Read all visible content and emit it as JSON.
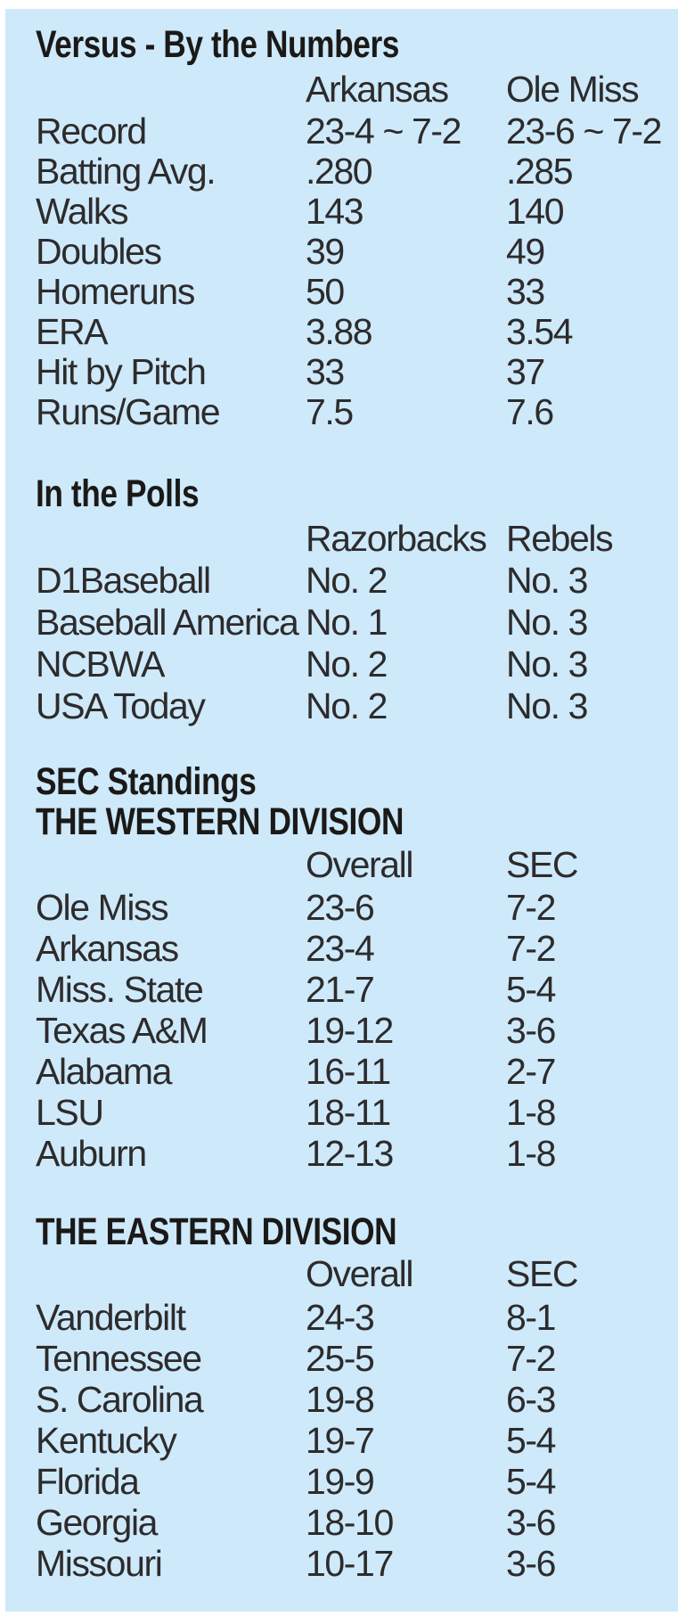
{
  "theme": {
    "panel_background": "#cee9fa",
    "page_background": "#ffffff",
    "body_text_color": "#2d2b2c",
    "heading_text_color": "#1b1917"
  },
  "versus": {
    "title": "Versus - By the Numbers",
    "columns": [
      "Arkansas",
      "Ole Miss"
    ],
    "rows": [
      {
        "label": "Record",
        "values": [
          "23-4 ~ 7-2",
          "23-6 ~ 7-2"
        ]
      },
      {
        "label": "Batting Avg.",
        "values": [
          ".280",
          ".285"
        ]
      },
      {
        "label": "Walks",
        "values": [
          "143",
          "140"
        ]
      },
      {
        "label": "Doubles",
        "values": [
          "39",
          "49"
        ]
      },
      {
        "label": "Homeruns",
        "values": [
          "50",
          "33"
        ]
      },
      {
        "label": "ERA",
        "values": [
          "3.88",
          "3.54"
        ]
      },
      {
        "label": "Hit by Pitch",
        "values": [
          "33",
          "37"
        ]
      },
      {
        "label": "Runs/Game",
        "values": [
          "7.5",
          "7.6"
        ]
      }
    ]
  },
  "polls": {
    "title": "In the Polls",
    "columns": [
      "Razorbacks",
      "Rebels"
    ],
    "rows": [
      {
        "label": "D1Baseball",
        "values": [
          "No. 2",
          "No. 3"
        ]
      },
      {
        "label": "Baseball America",
        "values": [
          "No. 1",
          "No. 3"
        ]
      },
      {
        "label": "NCBWA",
        "values": [
          "No. 2",
          "No. 3"
        ]
      },
      {
        "label": "USA Today",
        "values": [
          "No. 2",
          "No. 3"
        ]
      }
    ]
  },
  "standings": {
    "title": "SEC Standings",
    "west": {
      "title": "THE WESTERN DIVISION",
      "columns": [
        "Overall",
        "SEC"
      ],
      "rows": [
        {
          "label": "Ole Miss",
          "values": [
            "23-6",
            "7-2"
          ]
        },
        {
          "label": "Arkansas",
          "values": [
            "23-4",
            "7-2"
          ]
        },
        {
          "label": "Miss. State",
          "values": [
            "21-7",
            "5-4"
          ]
        },
        {
          "label": "Texas A&M",
          "values": [
            "19-12",
            "3-6"
          ]
        },
        {
          "label": "Alabama",
          "values": [
            "16-11",
            "2-7"
          ]
        },
        {
          "label": "LSU",
          "values": [
            "18-11",
            "1-8"
          ]
        },
        {
          "label": "Auburn",
          "values": [
            "12-13",
            "1-8"
          ]
        }
      ]
    },
    "east": {
      "title": "THE EASTERN DIVISION",
      "columns": [
        "Overall",
        "SEC"
      ],
      "rows": [
        {
          "label": "Vanderbilt",
          "values": [
            "24-3",
            "8-1"
          ]
        },
        {
          "label": "Tennessee",
          "values": [
            "25-5",
            "7-2"
          ]
        },
        {
          "label": "S. Carolina",
          "values": [
            "19-8",
            "6-3"
          ]
        },
        {
          "label": "Kentucky",
          "values": [
            "19-7",
            "5-4"
          ]
        },
        {
          "label": "Florida",
          "values": [
            "19-9",
            "5-4"
          ]
        },
        {
          "label": "Georgia",
          "values": [
            "18-10",
            "3-6"
          ]
        },
        {
          "label": "Missouri",
          "values": [
            "10-17",
            "3-6"
          ]
        }
      ]
    }
  }
}
